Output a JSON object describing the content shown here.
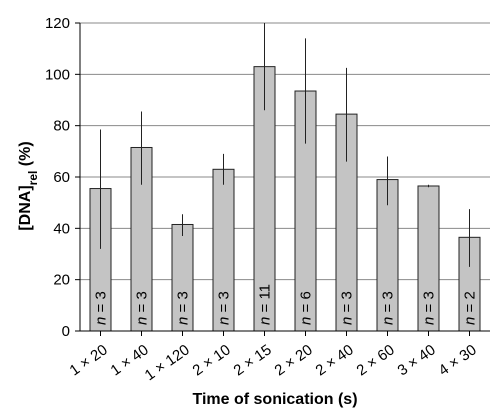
{
  "chart_data": {
    "type": "bar",
    "title": "",
    "xlabel": "Time of sonication (s)",
    "ylabel_main": "[DNA]",
    "ylabel_sub": "rel",
    "ylabel_unit": " (%)",
    "ylim": [
      0,
      120
    ],
    "yticks": [
      "0",
      "20",
      "40",
      "60",
      "80",
      "100",
      "120"
    ],
    "grid": true,
    "bar_color": "#c4c4c4",
    "categories": [
      "1 × 20",
      "1 × 40",
      "1 × 120",
      "2 × 10",
      "2 × 15",
      "2 × 20",
      "2 × 40",
      "2 × 60",
      "3 × 40",
      "4 × 30"
    ],
    "values": [
      55.5,
      71.5,
      41.5,
      63,
      103,
      93.5,
      84.5,
      59,
      56.5,
      36.5
    ],
    "error_low": [
      32,
      57,
      37,
      57,
      86,
      73,
      66,
      49,
      56,
      25
    ],
    "error_high": [
      78.5,
      85.5,
      45.5,
      69,
      120,
      114,
      102.5,
      68,
      57,
      47.5
    ],
    "n_labels": [
      {
        "n": "n",
        "eq": " = 3"
      },
      {
        "n": "n",
        "eq": " = 3"
      },
      {
        "n": "n",
        "eq": " = 3"
      },
      {
        "n": "n",
        "eq": " = 3"
      },
      {
        "n": "n",
        "eq": " = 11"
      },
      {
        "n": "n",
        "eq": " = 6"
      },
      {
        "n": "n",
        "eq": " = 3"
      },
      {
        "n": "n",
        "eq": " = 3"
      },
      {
        "n": "n",
        "eq": " = 3"
      },
      {
        "n": "n",
        "eq": " = 2"
      }
    ]
  }
}
